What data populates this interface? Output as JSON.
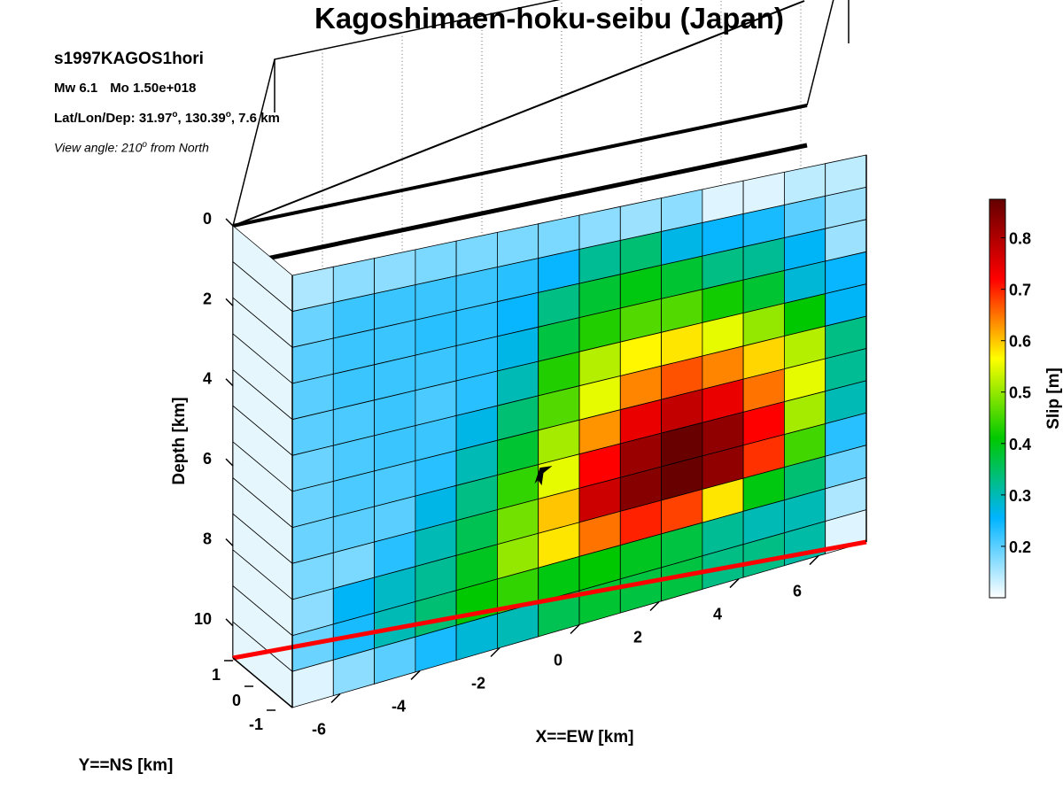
{
  "header": {
    "title": "Kagoshimaen-hoku-seibu (Japan)",
    "event_id": "s1997KAGOS1hori",
    "mw": "Mw 6.1",
    "mo": "Mo 1.50e+018",
    "lat_lon_dep_label": "Lat/Lon/Dep: ",
    "lat": "31.97",
    "lon": "130.39",
    "depth": "7.6 km",
    "view_prefix": "View angle: 210",
    "view_suffix": " from North",
    "degree_mark": "o"
  },
  "colorbar": {
    "label": "Slip [m]",
    "ticks": [
      "0.2",
      "0.3",
      "0.4",
      "0.5",
      "0.6",
      "0.7",
      "0.8"
    ],
    "tick_values": [
      0.2,
      0.3,
      0.4,
      0.5,
      0.6,
      0.7,
      0.8
    ],
    "range": [
      0.1,
      0.875
    ],
    "colormap": [
      "#ffffff",
      "#00b4ff",
      "#00c800",
      "#ffff00",
      "#ff0000",
      "#640000"
    ]
  },
  "chart_data": {
    "type": "heatmap",
    "title": "Kagoshimaen-hoku-seibu (Japan)",
    "xlabel": "X==EW [km]",
    "ylabel": "Y==NS [km]",
    "zlabel": "Depth [km]",
    "x_ticks": [
      "-6",
      "-4",
      "-2",
      "0",
      "2",
      "4",
      "6"
    ],
    "y_ticks": [
      "1",
      "0",
      "-1"
    ],
    "z_ticks": [
      "0",
      "2",
      "4",
      "6",
      "8",
      "10"
    ],
    "x_range": [
      -7.2,
      7.2
    ],
    "depth_range": [
      0,
      10.8
    ],
    "view_angle_deg": 210,
    "colorbar_label": "Slip [m]",
    "slip_grid_m": [
      [
        0.15,
        0.17,
        0.17,
        0.18,
        0.18,
        0.18,
        0.18,
        0.17,
        0.16,
        0.17,
        0.12,
        0.12,
        0.14,
        0.14
      ],
      [
        0.19,
        0.22,
        0.22,
        0.22,
        0.22,
        0.23,
        0.25,
        0.32,
        0.34,
        0.27,
        0.25,
        0.24,
        0.2,
        0.16
      ],
      [
        0.2,
        0.22,
        0.22,
        0.23,
        0.23,
        0.25,
        0.33,
        0.38,
        0.4,
        0.38,
        0.33,
        0.32,
        0.26,
        0.16
      ],
      [
        0.2,
        0.22,
        0.22,
        0.22,
        0.23,
        0.27,
        0.37,
        0.43,
        0.46,
        0.46,
        0.42,
        0.38,
        0.28,
        0.25
      ],
      [
        0.2,
        0.21,
        0.22,
        0.21,
        0.23,
        0.3,
        0.43,
        0.52,
        0.57,
        0.58,
        0.55,
        0.5,
        0.41,
        0.26
      ],
      [
        0.19,
        0.21,
        0.22,
        0.22,
        0.27,
        0.34,
        0.46,
        0.55,
        0.64,
        0.67,
        0.64,
        0.59,
        0.52,
        0.33
      ],
      [
        0.19,
        0.21,
        0.21,
        0.23,
        0.3,
        0.38,
        0.51,
        0.63,
        0.74,
        0.78,
        0.74,
        0.65,
        0.55,
        0.32
      ],
      [
        0.19,
        0.2,
        0.2,
        0.27,
        0.33,
        0.44,
        0.55,
        0.72,
        0.82,
        0.87,
        0.83,
        0.72,
        0.51,
        0.3
      ],
      [
        0.18,
        0.18,
        0.23,
        0.3,
        0.36,
        0.48,
        0.6,
        0.77,
        0.84,
        0.87,
        0.83,
        0.69,
        0.45,
        0.23
      ],
      [
        0.17,
        0.26,
        0.29,
        0.32,
        0.39,
        0.5,
        0.58,
        0.65,
        0.7,
        0.68,
        0.58,
        0.4,
        0.34,
        0.19
      ],
      [
        0.19,
        0.24,
        0.3,
        0.34,
        0.41,
        0.44,
        0.4,
        0.41,
        0.39,
        0.37,
        0.32,
        0.3,
        0.3,
        0.15
      ],
      [
        0.12,
        0.17,
        0.2,
        0.24,
        0.28,
        0.3,
        0.36,
        0.38,
        0.37,
        0.37,
        0.33,
        0.33,
        0.31,
        0.12
      ]
    ],
    "grid_columns_x_km": [
      -6.7,
      -5.7,
      -4.6,
      -3.6,
      -2.6,
      -1.5,
      -0.5,
      0.5,
      1.5,
      2.6,
      3.6,
      4.6,
      5.7,
      6.7
    ],
    "grid_rows_depth_km": [
      0.45,
      1.35,
      2.25,
      3.15,
      4.05,
      4.95,
      5.85,
      6.75,
      7.65,
      8.55,
      9.45,
      10.35
    ],
    "hypocenter": {
      "x_km": -0.9,
      "depth_km": 6.6
    }
  }
}
